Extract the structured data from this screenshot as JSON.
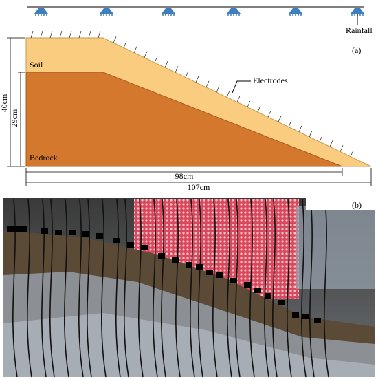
{
  "panel_a": {
    "label": "(a)",
    "rainfall": "Rainfall",
    "soil": "Soil",
    "bedrock": "Bedrock",
    "electrodes": "Electrodes",
    "height_total": "40cm",
    "height_bedrock": "29cm",
    "length_bedrock": "98cm",
    "length_total": "107cm"
  },
  "panel_b": {
    "label": "(b)"
  }
}
